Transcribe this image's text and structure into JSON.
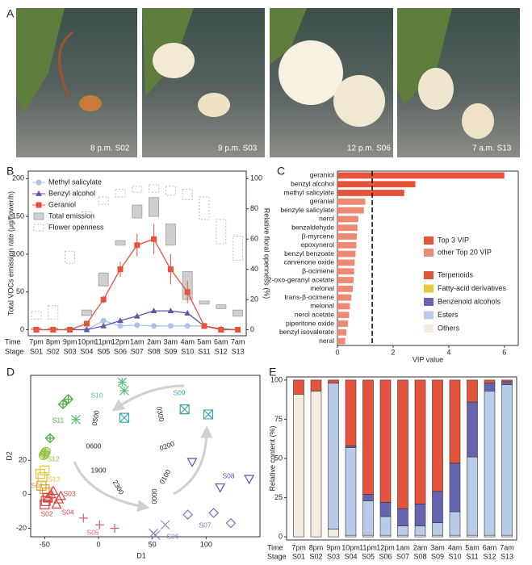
{
  "photo_panel": {
    "panel_label": "A",
    "photos": [
      {
        "caption": "8 p.m. S02"
      },
      {
        "caption": "9 p.m. S03"
      },
      {
        "caption": "12 p.m. S06"
      },
      {
        "caption": "7 a.m. S13"
      }
    ]
  },
  "chart_data": [
    {
      "type": "line",
      "panel_label": "B",
      "y_label": "Total VOCs emission rate (μg/flower/h)",
      "y2_label": "Relative floral openness (%)",
      "row_labels": [
        "Time",
        "Stage"
      ],
      "categories": [
        "7pm",
        "8pm",
        "9pm",
        "10pm",
        "11pm",
        "12pm",
        "1am",
        "2am",
        "3am",
        "4am",
        "5am",
        "6am",
        "7am"
      ],
      "stages": [
        "S01",
        "S02",
        "S03",
        "S04",
        "S05",
        "S06",
        "S07",
        "S08",
        "S09",
        "S10",
        "S11",
        "S12",
        "S13"
      ],
      "ylim": [
        -8,
        210
      ],
      "yticks": [
        0,
        50,
        100,
        150,
        200
      ],
      "y2lim": [
        -4,
        105
      ],
      "y2ticks": [
        0,
        20,
        40,
        60,
        80,
        100
      ],
      "series": [
        {
          "name": "Methyl salicylate",
          "color": "#a9c4ec",
          "marker": "circle",
          "values": [
            0,
            0,
            0,
            0,
            12,
            5,
            6,
            5,
            5,
            5,
            5,
            0,
            0
          ],
          "errors": [
            0,
            0,
            0,
            0,
            2,
            1,
            1,
            1,
            1,
            1,
            1,
            0,
            0
          ]
        },
        {
          "name": "Benzyl alcohol",
          "color": "#5b58a8",
          "marker": "triangle",
          "values": [
            0,
            0,
            0,
            0,
            5,
            12,
            18,
            25,
            25,
            22,
            5,
            1,
            0
          ],
          "errors": [
            0,
            0,
            0,
            1,
            1,
            2,
            2,
            3,
            3,
            3,
            1,
            0,
            0
          ]
        },
        {
          "name": "Geraniol",
          "color": "#e5533d",
          "marker": "square",
          "values": [
            0,
            0,
            0,
            8,
            40,
            80,
            112,
            120,
            80,
            50,
            5,
            0,
            0
          ],
          "errors": [
            0,
            0,
            0,
            2,
            5,
            10,
            15,
            20,
            20,
            15,
            2,
            0,
            0
          ]
        }
      ],
      "boxes": [
        {
          "name": "Total emission",
          "color": "#cfcfcf",
          "low": [
            0,
            0,
            0,
            19,
            58,
            112,
            148,
            150,
            112,
            40,
            34,
            28,
            18
          ],
          "high": [
            2,
            2,
            2,
            26,
            75,
            118,
            165,
            175,
            140,
            77,
            38,
            33,
            26
          ]
        },
        {
          "name": "Flower openness",
          "color": "#bdbdbd",
          "axis": "y2",
          "low": [
            7,
            7,
            44,
            67,
            83,
            88,
            91,
            91,
            89,
            86,
            73,
            57,
            46
          ],
          "high": [
            12,
            16,
            52,
            78,
            88,
            93,
            95,
            96,
            95,
            93,
            88,
            73,
            62
          ]
        }
      ]
    },
    {
      "type": "hbar",
      "panel_label": "C",
      "x_label": "VIP value",
      "categories": [
        "geraniol",
        "benzyl alcohol",
        "methyl salicylate",
        "geranial",
        "benzyle salicylate",
        "nerol",
        "benzaldehyde",
        "β-myrcene",
        "epoxynerol",
        "benzyl benzoate",
        "carvenone oxide",
        "β-ocimene",
        "2-oxo-geranyl acetate",
        "melonal",
        "trans-β-ocimene",
        "melonal",
        "nerol acetate",
        "piperitone oxide",
        "benzyl isovalerate",
        "neral"
      ],
      "xlim": [
        0,
        6.5
      ],
      "xticks": [
        0,
        2,
        4,
        6
      ],
      "vip_threshold": 1.25,
      "series": [
        {
          "name": "Top 3 VIP",
          "color": "#e5533d",
          "values": [
            6.0,
            2.8,
            2.4,
            null,
            null,
            null,
            null,
            null,
            null,
            null,
            null,
            null,
            null,
            null,
            null,
            null,
            null,
            null,
            null,
            null
          ]
        },
        {
          "name": "other Top 20 VIP",
          "color": "#ef8a72",
          "values": [
            null,
            null,
            null,
            1.0,
            0.95,
            0.75,
            0.72,
            0.7,
            0.68,
            0.65,
            0.62,
            0.6,
            0.58,
            0.55,
            0.5,
            0.45,
            0.42,
            0.38,
            0.32,
            0.28
          ]
        }
      ]
    },
    {
      "type": "scatter",
      "panel_label": "D",
      "x_label": "D1",
      "y_label": "D2",
      "xlim": [
        -63,
        150
      ],
      "xticks": [
        -50,
        0,
        50,
        100
      ],
      "ylim": [
        -25,
        70
      ],
      "yticks": [
        -20,
        0,
        20
      ],
      "annotations": [
        "0500",
        "0300",
        "0600",
        "0200",
        "1900",
        "0100",
        "2300",
        "0000"
      ],
      "series": [
        {
          "name": "S01",
          "color": "#e89a2e",
          "marker": "square",
          "x": [
            -50,
            -48,
            -53
          ],
          "y": [
            3,
            1,
            5
          ]
        },
        {
          "name": "S02",
          "color": "#d9453f",
          "marker": "square",
          "x": [
            -49,
            -50,
            -47
          ],
          "y": [
            -4,
            -6,
            -2
          ]
        },
        {
          "name": "S03",
          "color": "#d94040",
          "marker": "triangle",
          "x": [
            -44,
            -47,
            -42
          ],
          "y": [
            0,
            -2,
            2
          ]
        },
        {
          "name": "S04",
          "color": "#d94040",
          "marker": "triangle",
          "x": [
            -37,
            -39,
            -35
          ],
          "y": [
            -3,
            -6,
            -1
          ]
        },
        {
          "name": "S05",
          "color": "#d9606a",
          "marker": "plus",
          "x": [
            -14,
            15,
            1
          ],
          "y": [
            -14,
            -20,
            -18
          ]
        },
        {
          "name": "S06",
          "color": "#9b7fc9",
          "marker": "x",
          "x": [
            51,
            62,
            53
          ],
          "y": [
            -23,
            -18,
            -24
          ]
        },
        {
          "name": "S07",
          "color": "#7b6fc0",
          "marker": "diamond",
          "x": [
            83,
            107,
            123
          ],
          "y": [
            -12,
            -11,
            -17
          ]
        },
        {
          "name": "S08",
          "color": "#5a52b0",
          "marker": "triangle-down",
          "x": [
            87,
            113,
            140
          ],
          "y": [
            19,
            4,
            9
          ]
        },
        {
          "name": "S09",
          "color": "#3aa5b0",
          "marker": "square-x",
          "x": [
            80,
            102,
            24
          ],
          "y": [
            50,
            47,
            45
          ]
        },
        {
          "name": "S10",
          "color": "#5bbf7a",
          "marker": "asterisk",
          "x": [
            22,
            24,
            -21
          ],
          "y": [
            66,
            61,
            44
          ]
        },
        {
          "name": "S11",
          "color": "#4aaa3f",
          "marker": "diamond-plus",
          "x": [
            -33,
            -28,
            -45
          ],
          "y": [
            53,
            56,
            33
          ]
        },
        {
          "name": "S12",
          "color": "#8fc33a",
          "marker": "circle-plus",
          "x": [
            -50,
            -49,
            -51
          ],
          "y": [
            24,
            25,
            23
          ]
        },
        {
          "name": "S13",
          "color": "#e5c532",
          "marker": "square",
          "x": [
            -54,
            -50,
            -52
          ],
          "y": [
            12,
            14,
            10
          ]
        }
      ]
    },
    {
      "type": "stacked-bar",
      "panel_label": "E",
      "y_label": "Relative content (%)",
      "row_labels": [
        "Time",
        "Stage"
      ],
      "categories": [
        "7pm",
        "8pm",
        "9pm",
        "10pm",
        "11pm",
        "12pm",
        "1am",
        "2am",
        "3am",
        "4am",
        "5am",
        "6am",
        "7am"
      ],
      "stages": [
        "S01",
        "S02",
        "S03",
        "S04",
        "S05",
        "S06",
        "S07",
        "S08",
        "S09",
        "S10",
        "S11",
        "S12",
        "S13"
      ],
      "ylim": [
        -2,
        102
      ],
      "yticks": [
        0,
        25,
        50,
        75,
        100
      ],
      "series": [
        {
          "name": "Others",
          "color": "#f4ece1",
          "values": [
            91,
            93,
            5,
            1,
            1,
            1,
            1,
            1,
            1,
            1,
            1,
            1,
            1
          ]
        },
        {
          "name": "Esters",
          "color": "#b8cbea",
          "values": [
            0,
            0,
            93,
            56,
            22,
            12,
            6,
            6,
            8,
            15,
            50,
            92,
            96
          ]
        },
        {
          "name": "Benzenoid alcohols",
          "color": "#6664ae",
          "values": [
            0,
            0,
            0,
            1,
            4,
            9,
            11,
            14,
            20,
            31,
            35,
            5,
            2
          ]
        },
        {
          "name": "Fatty-acid derivatives",
          "color": "#e8c93a",
          "values": [
            0,
            0,
            0,
            0,
            0,
            0,
            0,
            0,
            0,
            0,
            0,
            0,
            0
          ]
        },
        {
          "name": "Terpenoids",
          "color": "#e5533d",
          "values": [
            9,
            7,
            2,
            42,
            73,
            78,
            82,
            79,
            71,
            53,
            14,
            2,
            1
          ]
        }
      ]
    }
  ]
}
